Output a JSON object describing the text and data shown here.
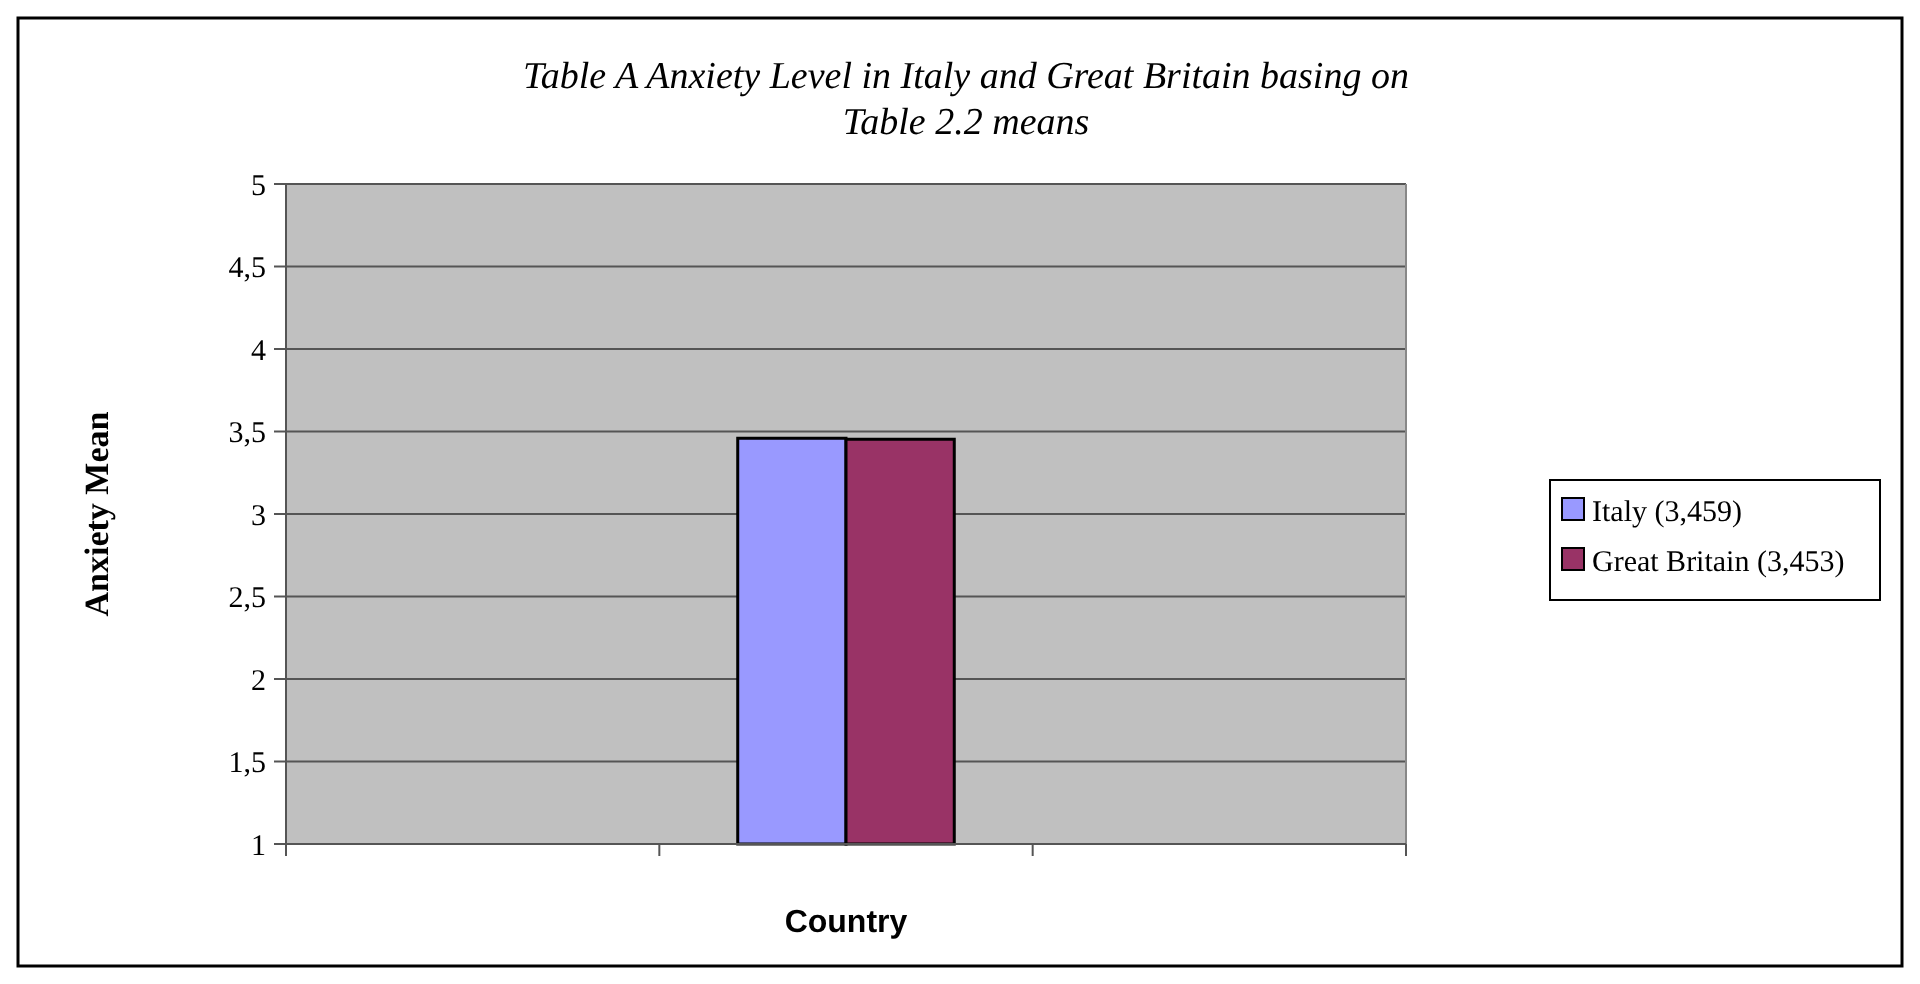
{
  "chart_data": {
    "type": "bar",
    "title": "Table A    Anxiety Level in Italy and Great Britain basing on Table 2.2 means",
    "xlabel": "Country",
    "ylabel": "Anxiety Mean",
    "categories": [
      null,
      null,
      null
    ],
    "series": [
      {
        "name": "Italy (3,459)",
        "color": "#9999ff",
        "values": [
          null,
          3.459,
          null
        ]
      },
      {
        "name": "Great Britain (3,453)",
        "color": "#993366",
        "values": [
          null,
          3.453,
          null
        ]
      }
    ],
    "ylim": [
      1,
      5
    ],
    "yticks": [
      1,
      {
        "value": 1.5,
        "label": "1,5"
      },
      2,
      {
        "value": 2.5,
        "label": "2,5"
      },
      3,
      {
        "value": 3.5,
        "label": "3,5"
      },
      4,
      {
        "value": 4.5,
        "label": "4,5"
      },
      5
    ],
    "grid": "y",
    "legend": "right"
  }
}
